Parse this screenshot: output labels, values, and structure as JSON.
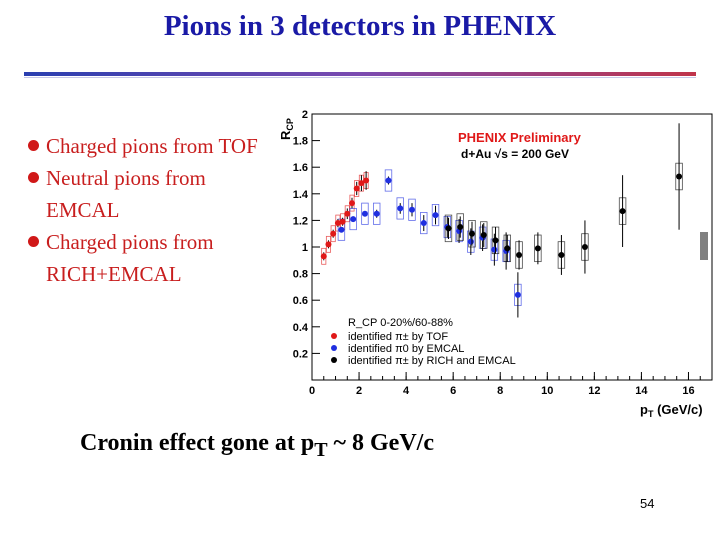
{
  "slide": {
    "title": "Pions in 3 detectors in PHENIX",
    "bullets": [
      "Charged pions from TOF",
      "Neutral pions from EMCAL",
      "Charged pions from RICH+EMCAL"
    ],
    "footer": {
      "main": "Cronin effect gone at p",
      "sub": "T",
      "tail": " ~ 8 GeV/c"
    },
    "page_number": "54"
  },
  "colors": {
    "title": "#1a1aa6",
    "bullets": "#c81e1e",
    "tof": "#e01818",
    "emcal": "#1f2fe0",
    "rich": "#000000"
  },
  "chart_data": {
    "type": "scatter",
    "title": "PHENIX Preliminary",
    "subtitle": "d+Au √s = 200 GeV",
    "xlabel": "p_T (GeV/c)",
    "ylabel": "R_CP",
    "xlim": [
      0,
      17
    ],
    "ylim": [
      0,
      2
    ],
    "xticks": [
      0,
      2,
      4,
      6,
      8,
      10,
      12,
      14,
      16
    ],
    "yticks": [
      0.2,
      0.4,
      0.6,
      0.8,
      1,
      1.2,
      1.4,
      1.6,
      1.8,
      2
    ],
    "legend": {
      "header": "R_CP 0-20%/60-88%",
      "position": "bottom-left",
      "entries": [
        "identified π± by TOF",
        "identified π0 by EMCAL",
        "identified π± by RICH and EMCAL"
      ]
    },
    "series": [
      {
        "name": "identified π± by TOF",
        "color": "#e01818",
        "x": [
          0.5,
          0.7,
          0.9,
          1.1,
          1.3,
          1.5,
          1.7,
          1.9,
          2.1,
          2.3
        ],
        "y": [
          0.93,
          1.02,
          1.1,
          1.18,
          1.19,
          1.25,
          1.33,
          1.44,
          1.48,
          1.5
        ],
        "yerr": [
          0.03,
          0.03,
          0.03,
          0.03,
          0.03,
          0.04,
          0.04,
          0.05,
          0.06,
          0.07
        ]
      },
      {
        "name": "identified π0 by EMCAL",
        "color": "#1f2fe0",
        "x": [
          1.25,
          1.75,
          2.25,
          2.75,
          3.25,
          3.75,
          4.25,
          4.75,
          5.25,
          5.75,
          6.25,
          6.75,
          7.25,
          7.75,
          8.25,
          8.75
        ],
        "y": [
          1.13,
          1.21,
          1.25,
          1.25,
          1.5,
          1.29,
          1.28,
          1.18,
          1.24,
          1.15,
          1.12,
          1.04,
          1.07,
          0.98,
          0.97,
          0.64
        ],
        "yerr": [
          0.02,
          0.02,
          0.02,
          0.03,
          0.03,
          0.04,
          0.05,
          0.06,
          0.07,
          0.08,
          0.09,
          0.1,
          0.1,
          0.12,
          0.14,
          0.17
        ]
      },
      {
        "name": "identified π± by RICH and EMCAL",
        "color": "#000000",
        "x": [
          5.8,
          6.3,
          6.8,
          7.3,
          7.8,
          8.3,
          8.8,
          9.6,
          10.6,
          11.6,
          13.2,
          15.6
        ],
        "y": [
          1.14,
          1.15,
          1.1,
          1.09,
          1.05,
          0.99,
          0.94,
          0.99,
          0.94,
          1.0,
          1.27,
          1.53
        ],
        "yerr": [
          0.08,
          0.08,
          0.09,
          0.09,
          0.1,
          0.1,
          0.11,
          0.12,
          0.15,
          0.2,
          0.27,
          0.4
        ]
      }
    ]
  }
}
